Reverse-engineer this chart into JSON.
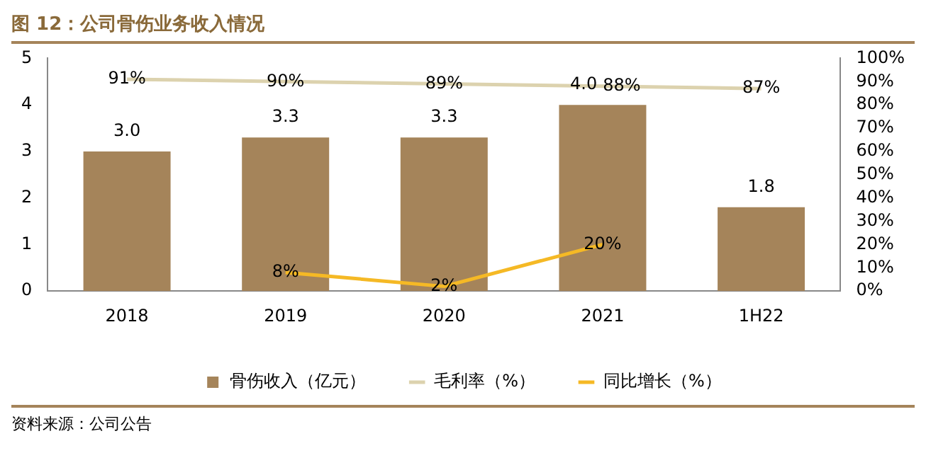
{
  "chart_data": {
    "type": "bar",
    "title": "图 12：公司骨伤业务收入情况",
    "categories": [
      "2018",
      "2019",
      "2020",
      "2021",
      "1H22"
    ],
    "series": [
      {
        "name": "骨伤收入（亿元）",
        "color": "#a5845a",
        "values": [
          3.0,
          3.3,
          3.3,
          4.0,
          1.8
        ],
        "value_labels": [
          "3.0",
          "3.3",
          "3.3",
          "4.0",
          "1.8"
        ]
      },
      {
        "name": "毛利率（%）",
        "type": "line",
        "axis": "y2",
        "color": "#dcd2ae",
        "values": [
          91,
          90,
          89,
          88,
          87
        ],
        "value_labels": [
          "91%",
          "90%",
          "89%",
          "88%",
          "87%"
        ]
      },
      {
        "name": "同比增长（%）",
        "type": "line",
        "axis": "y2",
        "color": "#f5b925",
        "values": [
          null,
          8,
          2,
          20,
          null
        ],
        "value_labels": [
          null,
          "8%",
          "2%",
          "20%",
          null
        ]
      }
    ],
    "ylim": [
      0,
      5
    ],
    "yticks": [
      0,
      1,
      2,
      3,
      4,
      5
    ],
    "y2lim": [
      0,
      100
    ],
    "y2ticks": [
      {
        "value": 0,
        "label": "0%"
      },
      {
        "value": 10,
        "label": "10%"
      },
      {
        "value": 20,
        "label": "20%"
      },
      {
        "value": 30,
        "label": "30%"
      },
      {
        "value": 40,
        "label": "40%"
      },
      {
        "value": 50,
        "label": "50%"
      },
      {
        "value": 60,
        "label": "60%"
      },
      {
        "value": 70,
        "label": "70%"
      },
      {
        "value": 80,
        "label": "80%"
      },
      {
        "value": 90,
        "label": "90%"
      },
      {
        "value": 100,
        "label": "100%"
      }
    ],
    "legend": "bottom",
    "grid": false,
    "marker": "none",
    "annotations": [
      "资料来源：公司公告"
    ]
  }
}
